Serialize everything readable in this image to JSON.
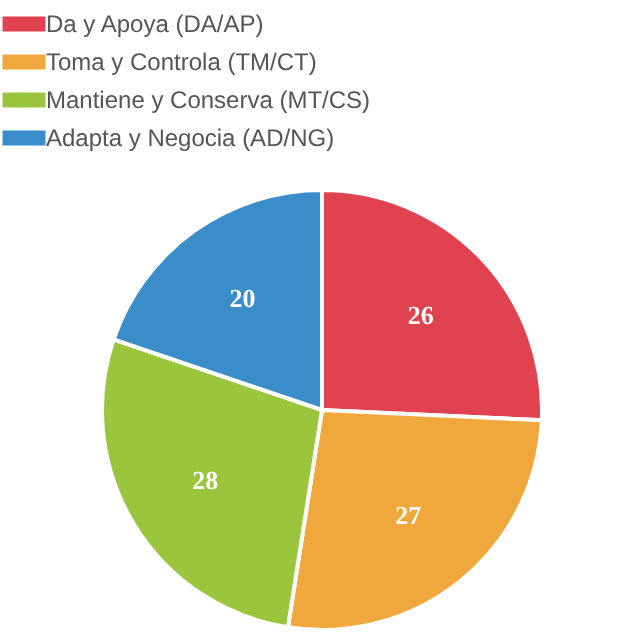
{
  "chart_data": {
    "type": "pie",
    "categories": [
      "Da y Apoya (DA/AP)",
      "Toma y Controla (TM/CT)",
      "Mantiene y Conserva (MT/CS)",
      "Adapta y Negocia (AD/NG)"
    ],
    "values": [
      26,
      27,
      28,
      20
    ],
    "colors": [
      "#e0434f",
      "#f0a83c",
      "#9bc53d",
      "#3a8dc8"
    ],
    "data_labels": true,
    "legend": "top"
  }
}
